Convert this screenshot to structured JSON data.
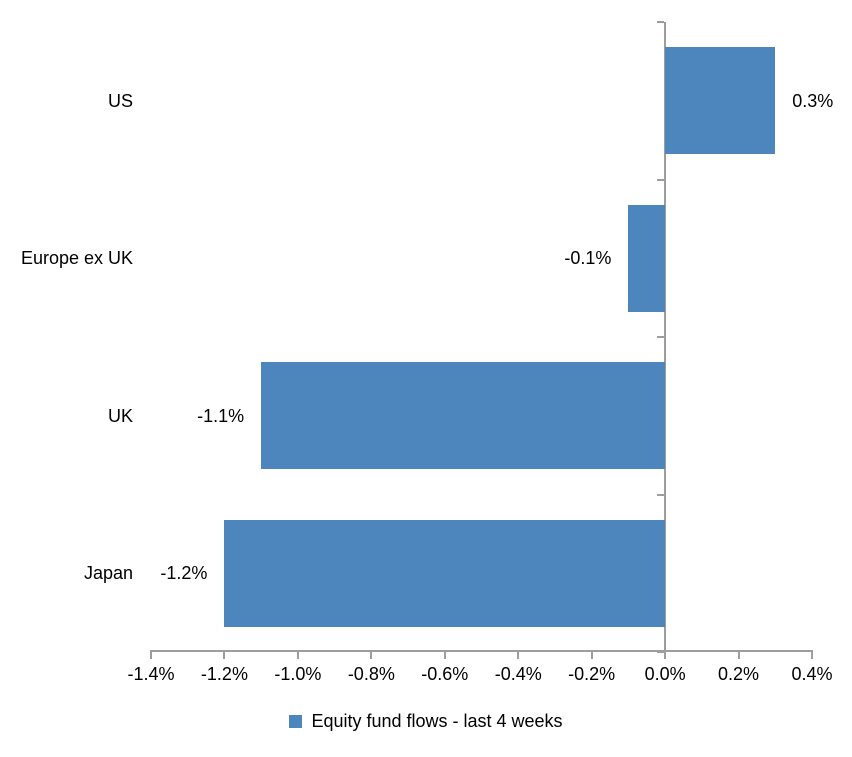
{
  "chart_data": {
    "type": "bar",
    "orientation": "horizontal",
    "title": "",
    "xlabel": "",
    "ylabel": "",
    "categories": [
      "US",
      "Europe ex UK",
      "UK",
      "Japan"
    ],
    "series": [
      {
        "name": "Equity fund flows - last 4 weeks",
        "values": [
          0.3,
          -0.1,
          -1.1,
          -1.2
        ],
        "data_labels": [
          "0.3%",
          "-0.1%",
          "-1.1%",
          "-1.2%"
        ],
        "color": "#4d86bc"
      }
    ],
    "xlim": [
      -1.4,
      0.4
    ],
    "x_ticks": [
      -1.4,
      -1.2,
      -1.0,
      -0.8,
      -0.6,
      -0.4,
      -0.2,
      0.0,
      0.2,
      0.4
    ],
    "x_tick_labels": [
      "-1.4%",
      "-1.2%",
      "-1.0%",
      "-0.8%",
      "-0.6%",
      "-0.4%",
      "-0.2%",
      "0.0%",
      "0.2%",
      "0.4%"
    ],
    "grid": false,
    "legend_position": "bottom",
    "colors": {
      "bar": "#4d86bc",
      "axis": "#9d9d9d",
      "text": "#000000",
      "background": "#ffffff"
    }
  },
  "legend": {
    "items": [
      {
        "label": "Equity fund flows - last 4 weeks",
        "color": "#4d86bc"
      }
    ]
  }
}
